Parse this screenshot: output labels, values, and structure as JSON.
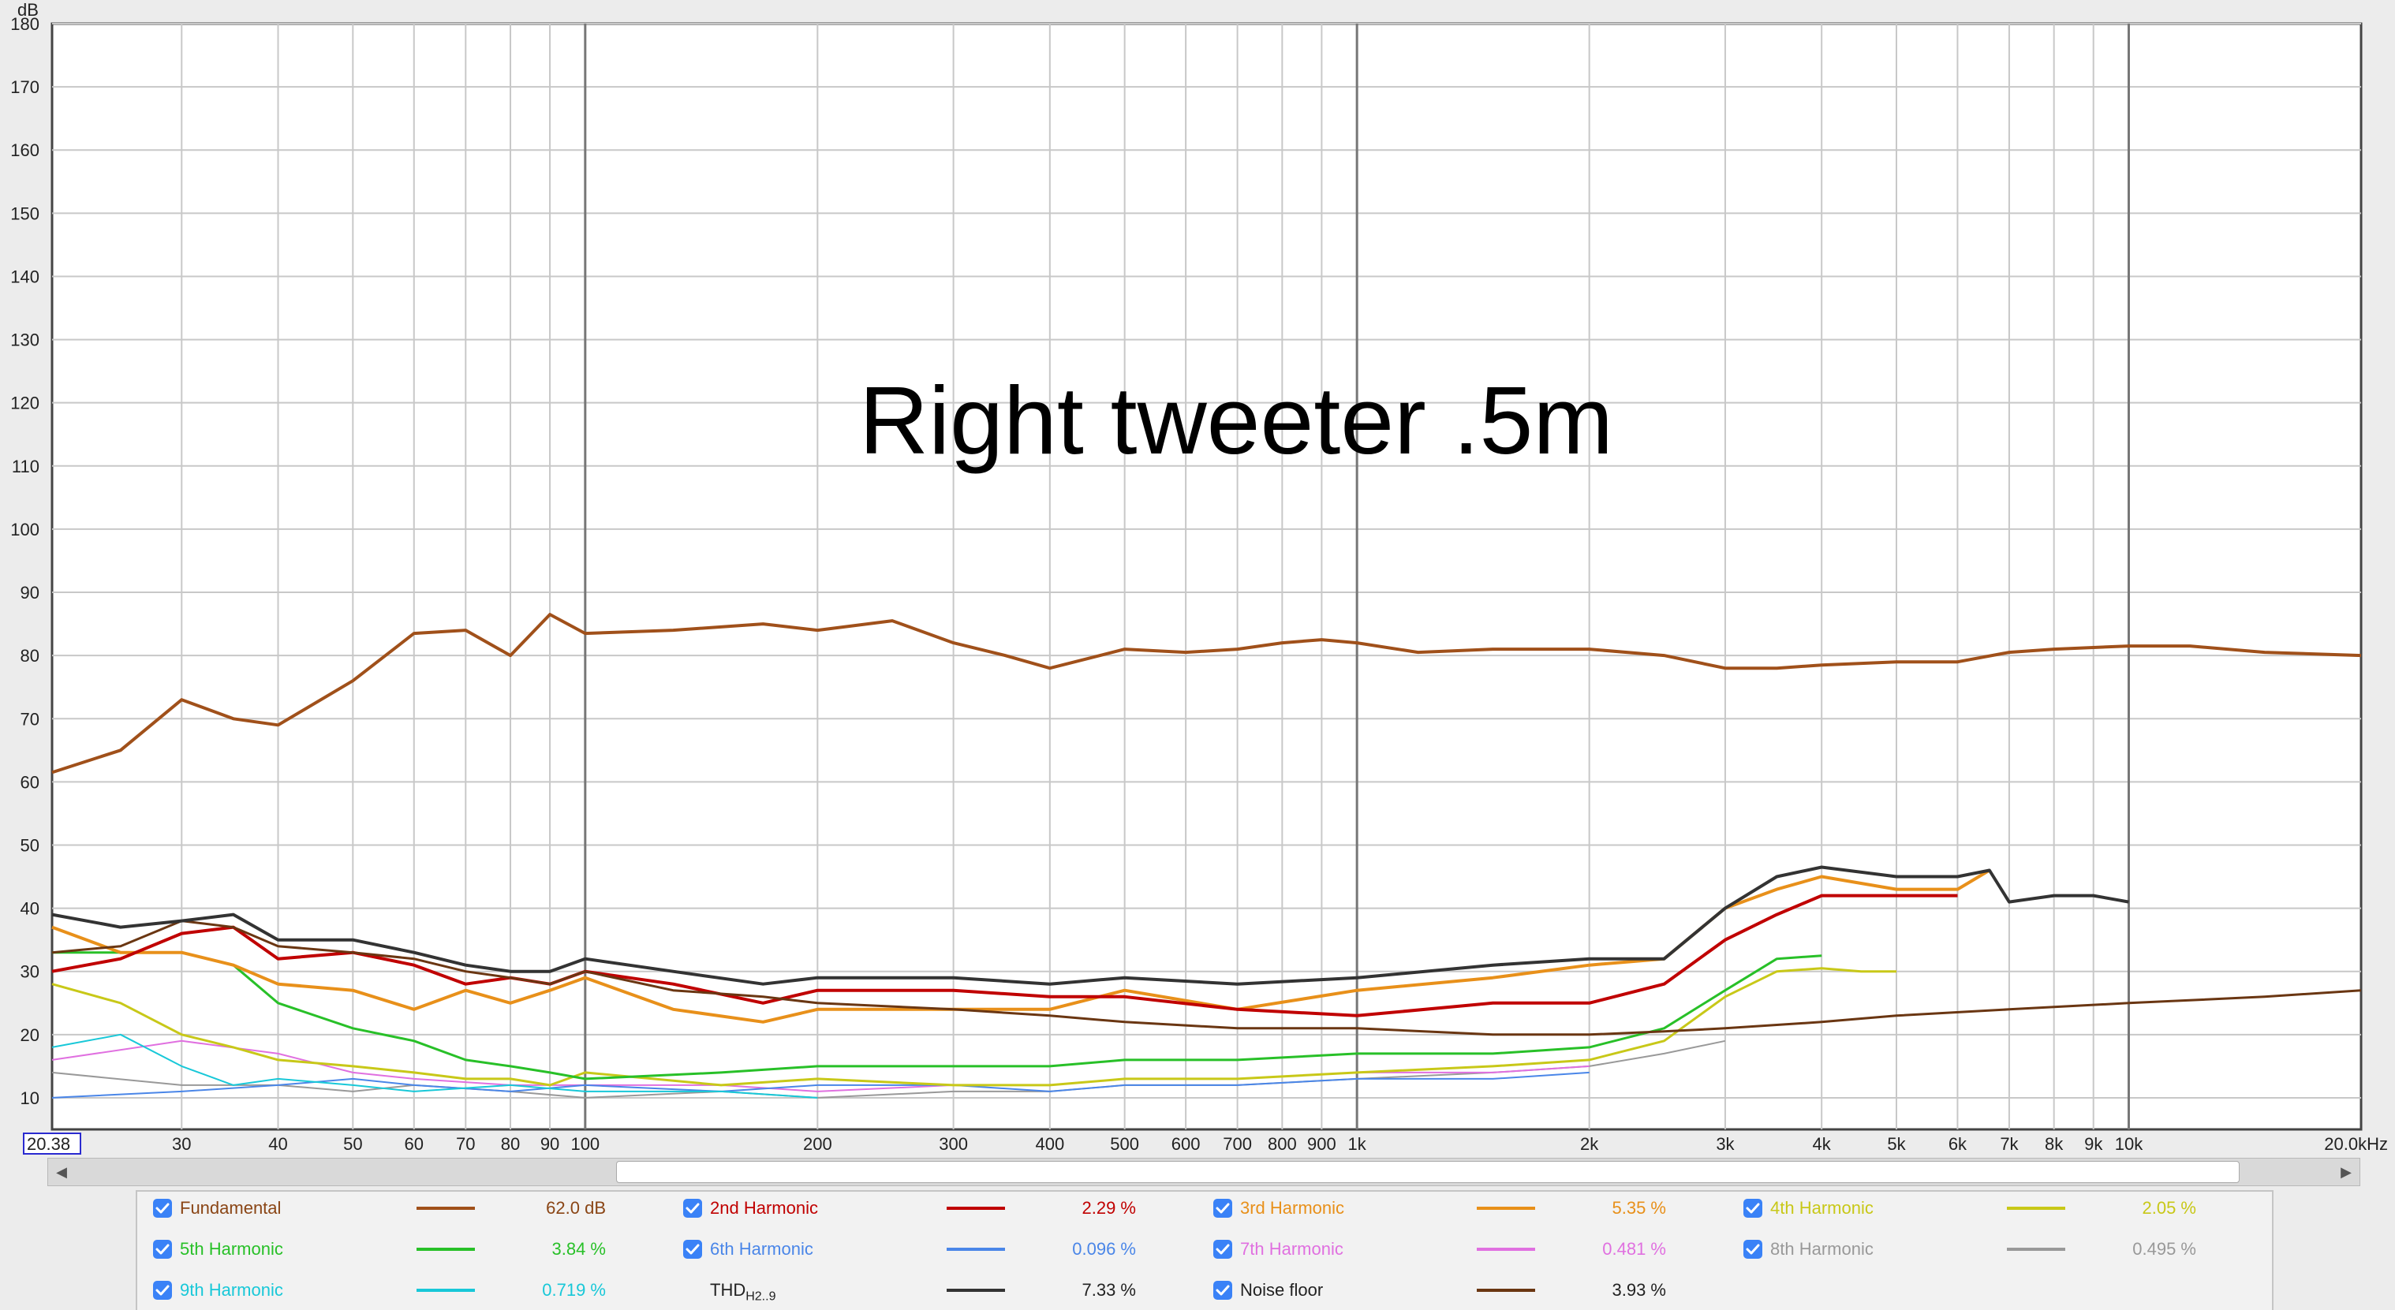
{
  "chart_data": {
    "type": "line",
    "title": "Right tweeter .5m",
    "ylabel": "dB",
    "xlabel": "",
    "x_scale": "log",
    "xlim": [
      20.38,
      20000
    ],
    "ylim": [
      5,
      180
    ],
    "grid": true,
    "x_ticks": [
      {
        "value": 20.38,
        "label": "20.38"
      },
      {
        "value": 30,
        "label": "30"
      },
      {
        "value": 40,
        "label": "40"
      },
      {
        "value": 50,
        "label": "50"
      },
      {
        "value": 60,
        "label": "60"
      },
      {
        "value": 70,
        "label": "70"
      },
      {
        "value": 80,
        "label": "80"
      },
      {
        "value": 90,
        "label": "90"
      },
      {
        "value": 100,
        "label": "100"
      },
      {
        "value": 200,
        "label": "200"
      },
      {
        "value": 300,
        "label": "300"
      },
      {
        "value": 400,
        "label": "400"
      },
      {
        "value": 500,
        "label": "500"
      },
      {
        "value": 600,
        "label": "600"
      },
      {
        "value": 700,
        "label": "700"
      },
      {
        "value": 800,
        "label": "800"
      },
      {
        "value": 900,
        "label": "900"
      },
      {
        "value": 1000,
        "label": "1k"
      },
      {
        "value": 2000,
        "label": "2k"
      },
      {
        "value": 3000,
        "label": "3k"
      },
      {
        "value": 4000,
        "label": "4k"
      },
      {
        "value": 5000,
        "label": "5k"
      },
      {
        "value": 6000,
        "label": "6k"
      },
      {
        "value": 7000,
        "label": "7k"
      },
      {
        "value": 8000,
        "label": "8k"
      },
      {
        "value": 9000,
        "label": "9k"
      },
      {
        "value": 10000,
        "label": "10k"
      },
      {
        "value": 20000,
        "label": "20.0kHz"
      }
    ],
    "y_ticks": [
      10,
      20,
      30,
      40,
      50,
      60,
      70,
      80,
      90,
      100,
      110,
      120,
      130,
      140,
      150,
      160,
      170,
      180
    ],
    "series": [
      {
        "name": "Fundamental",
        "color": "#a0501a",
        "width": 4,
        "x": [
          20.38,
          25,
          30,
          35,
          40,
          50,
          60,
          70,
          80,
          90,
          100,
          130,
          170,
          200,
          250,
          300,
          350,
          400,
          500,
          600,
          700,
          800,
          900,
          1000,
          1200,
          1500,
          2000,
          2500,
          3000,
          3500,
          4000,
          5000,
          6000,
          7000,
          8000,
          10000,
          12000,
          15000,
          20000
        ],
        "y": [
          61.5,
          65,
          73,
          70,
          69,
          76,
          83.5,
          84,
          80,
          86.5,
          83.5,
          84,
          85,
          84,
          85.5,
          82,
          80,
          78,
          81,
          80.5,
          81,
          82,
          82.5,
          82,
          80.5,
          81,
          81,
          80,
          78,
          78,
          78.5,
          79,
          79,
          80.5,
          81,
          81.5,
          81.5,
          80.5,
          80
        ]
      },
      {
        "name": "2nd Harmonic",
        "color": "#c00000",
        "width": 4,
        "x": [
          20.38,
          25,
          30,
          35,
          40,
          50,
          60,
          70,
          80,
          90,
          100,
          130,
          170,
          200,
          300,
          400,
          500,
          700,
          1000,
          1500,
          2000,
          2500,
          3000,
          3500,
          4000,
          5000,
          6000
        ],
        "y": [
          30,
          32,
          36,
          37,
          32,
          33,
          31,
          28,
          29,
          28,
          30,
          28,
          25,
          27,
          27,
          26,
          26,
          24,
          23,
          25,
          25,
          28,
          35,
          39,
          42,
          42,
          42
        ]
      },
      {
        "name": "3rd Harmonic",
        "color": "#e8901a",
        "width": 4,
        "x": [
          20.38,
          25,
          30,
          35,
          40,
          50,
          60,
          70,
          80,
          90,
          100,
          130,
          170,
          200,
          300,
          400,
          500,
          700,
          1000,
          1500,
          2000,
          2500,
          3000,
          3500,
          4000,
          5000,
          6000,
          6600
        ],
        "y": [
          37,
          33,
          33,
          31,
          28,
          27,
          24,
          27,
          25,
          27,
          29,
          24,
          22,
          24,
          24,
          24,
          27,
          24,
          27,
          29,
          31,
          32,
          40,
          43,
          45,
          43,
          43,
          46
        ]
      },
      {
        "name": "4th Harmonic",
        "color": "#c8c818",
        "width": 3,
        "x": [
          20.38,
          25,
          30,
          35,
          40,
          50,
          60,
          70,
          80,
          90,
          100,
          150,
          200,
          300,
          400,
          500,
          700,
          1000,
          1500,
          2000,
          2500,
          3000,
          3500,
          4000,
          4500,
          5000
        ],
        "y": [
          28,
          25,
          20,
          18,
          16,
          15,
          14,
          13,
          13,
          12,
          14,
          12,
          13,
          12,
          12,
          13,
          13,
          14,
          15,
          16,
          19,
          26,
          30,
          30.5,
          30,
          30
        ]
      },
      {
        "name": "5th Harmonic",
        "color": "#28c028",
        "width": 3,
        "x": [
          20.38,
          25,
          30,
          35,
          40,
          50,
          60,
          70,
          80,
          90,
          100,
          150,
          200,
          300,
          400,
          500,
          700,
          1000,
          1500,
          2000,
          2500,
          3000,
          3500,
          4000
        ],
        "y": [
          33,
          33,
          33,
          31,
          25,
          21,
          19,
          16,
          15,
          14,
          13,
          14,
          15,
          15,
          15,
          16,
          16,
          17,
          17,
          18,
          21,
          27,
          32,
          32.5
        ]
      },
      {
        "name": "6th Harmonic",
        "color": "#4a86e8",
        "width": 2,
        "x": [
          20.38,
          30,
          40,
          50,
          60,
          80,
          100,
          150,
          200,
          300,
          400,
          500,
          700,
          1000,
          1500,
          2000
        ],
        "y": [
          10,
          11,
          12,
          13,
          12,
          11,
          12,
          11,
          12,
          12,
          11,
          12,
          12,
          13,
          13,
          14
        ]
      },
      {
        "name": "7th Harmonic",
        "color": "#e070e0",
        "width": 2,
        "x": [
          20.38,
          30,
          40,
          50,
          60,
          80,
          100,
          150,
          200,
          300,
          400,
          500,
          700,
          1000,
          1500,
          2000
        ],
        "y": [
          16,
          19,
          17,
          14,
          13,
          12,
          12,
          12,
          11,
          12,
          12,
          13,
          13,
          14,
          14,
          15
        ]
      },
      {
        "name": "8th Harmonic",
        "color": "#999999",
        "width": 2,
        "x": [
          20.38,
          30,
          40,
          50,
          60,
          80,
          100,
          150,
          200,
          300,
          400,
          500,
          700,
          1000,
          1500,
          2000,
          2500,
          3000
        ],
        "y": [
          14,
          12,
          12,
          11,
          12,
          11,
          10,
          11,
          10,
          11,
          11,
          12,
          12,
          13,
          14,
          15,
          17,
          19
        ]
      },
      {
        "name": "9th Harmonic",
        "color": "#18c8d8",
        "width": 2,
        "x": [
          20.38,
          25,
          30,
          35,
          40,
          50,
          60,
          80,
          100,
          150,
          200
        ],
        "y": [
          18,
          20,
          15,
          12,
          13,
          12,
          11,
          12,
          11,
          11,
          10
        ]
      },
      {
        "name": "THD",
        "color": "#333333",
        "width": 4,
        "x": [
          20.38,
          25,
          30,
          35,
          40,
          50,
          60,
          70,
          80,
          90,
          100,
          130,
          170,
          200,
          300,
          400,
          500,
          700,
          1000,
          1500,
          2000,
          2500,
          3000,
          3500,
          4000,
          5000,
          6000,
          6600,
          7000,
          8000,
          9000,
          10000
        ],
        "y": [
          39,
          37,
          38,
          39,
          35,
          35,
          33,
          31,
          30,
          30,
          32,
          30,
          28,
          29,
          29,
          28,
          29,
          28,
          29,
          31,
          32,
          32,
          40,
          45,
          46.5,
          45,
          45,
          46,
          41,
          42,
          42,
          41
        ]
      },
      {
        "name": "Noise floor",
        "color": "#6a3612",
        "width": 3,
        "x": [
          20.38,
          25,
          30,
          35,
          40,
          50,
          60,
          70,
          80,
          90,
          100,
          130,
          170,
          200,
          300,
          400,
          500,
          700,
          1000,
          1500,
          2000,
          2500,
          3000,
          4000,
          5000,
          7000,
          10000,
          15000,
          20000
        ],
        "y": [
          33,
          34,
          38,
          37,
          34,
          33,
          32,
          30,
          29,
          28,
          30,
          27,
          26,
          25,
          24,
          23,
          22,
          21,
          21,
          20,
          20,
          20.5,
          21,
          22,
          23,
          24,
          25,
          26,
          27
        ]
      }
    ]
  },
  "legend": {
    "items": [
      {
        "label": "Fundamental",
        "value": "62.0 dB",
        "color": "#a0501a",
        "checked": true
      },
      {
        "label": "2nd Harmonic",
        "value": "2.29 %",
        "color": "#c00000",
        "checked": true
      },
      {
        "label": "3rd Harmonic",
        "value": "5.35 %",
        "color": "#e8901a",
        "checked": true
      },
      {
        "label": "4th Harmonic",
        "value": "2.05 %",
        "color": "#c8c818",
        "checked": true
      },
      {
        "label": "5th Harmonic",
        "value": "3.84 %",
        "color": "#28c028",
        "checked": true
      },
      {
        "label": "6th Harmonic",
        "value": "0.096 %",
        "color": "#4a86e8",
        "checked": true
      },
      {
        "label": "7th Harmonic",
        "value": "0.481 %",
        "color": "#e070e0",
        "checked": true
      },
      {
        "label": "8th Harmonic",
        "value": "0.495 %",
        "color": "#999999",
        "checked": true
      },
      {
        "label": "9th Harmonic",
        "value": "0.719 %",
        "color": "#18c8d8",
        "checked": true
      },
      {
        "label": "THD",
        "label_sub": "H2..9",
        "value": "7.33 %",
        "color": "#333333",
        "checked": false
      },
      {
        "label": "Noise floor",
        "value": "3.93 %",
        "color": "#6a3612",
        "checked": true
      }
    ]
  },
  "scrollbar": {
    "left_icon": "chevron-left-icon",
    "right_icon": "chevron-right-icon"
  }
}
